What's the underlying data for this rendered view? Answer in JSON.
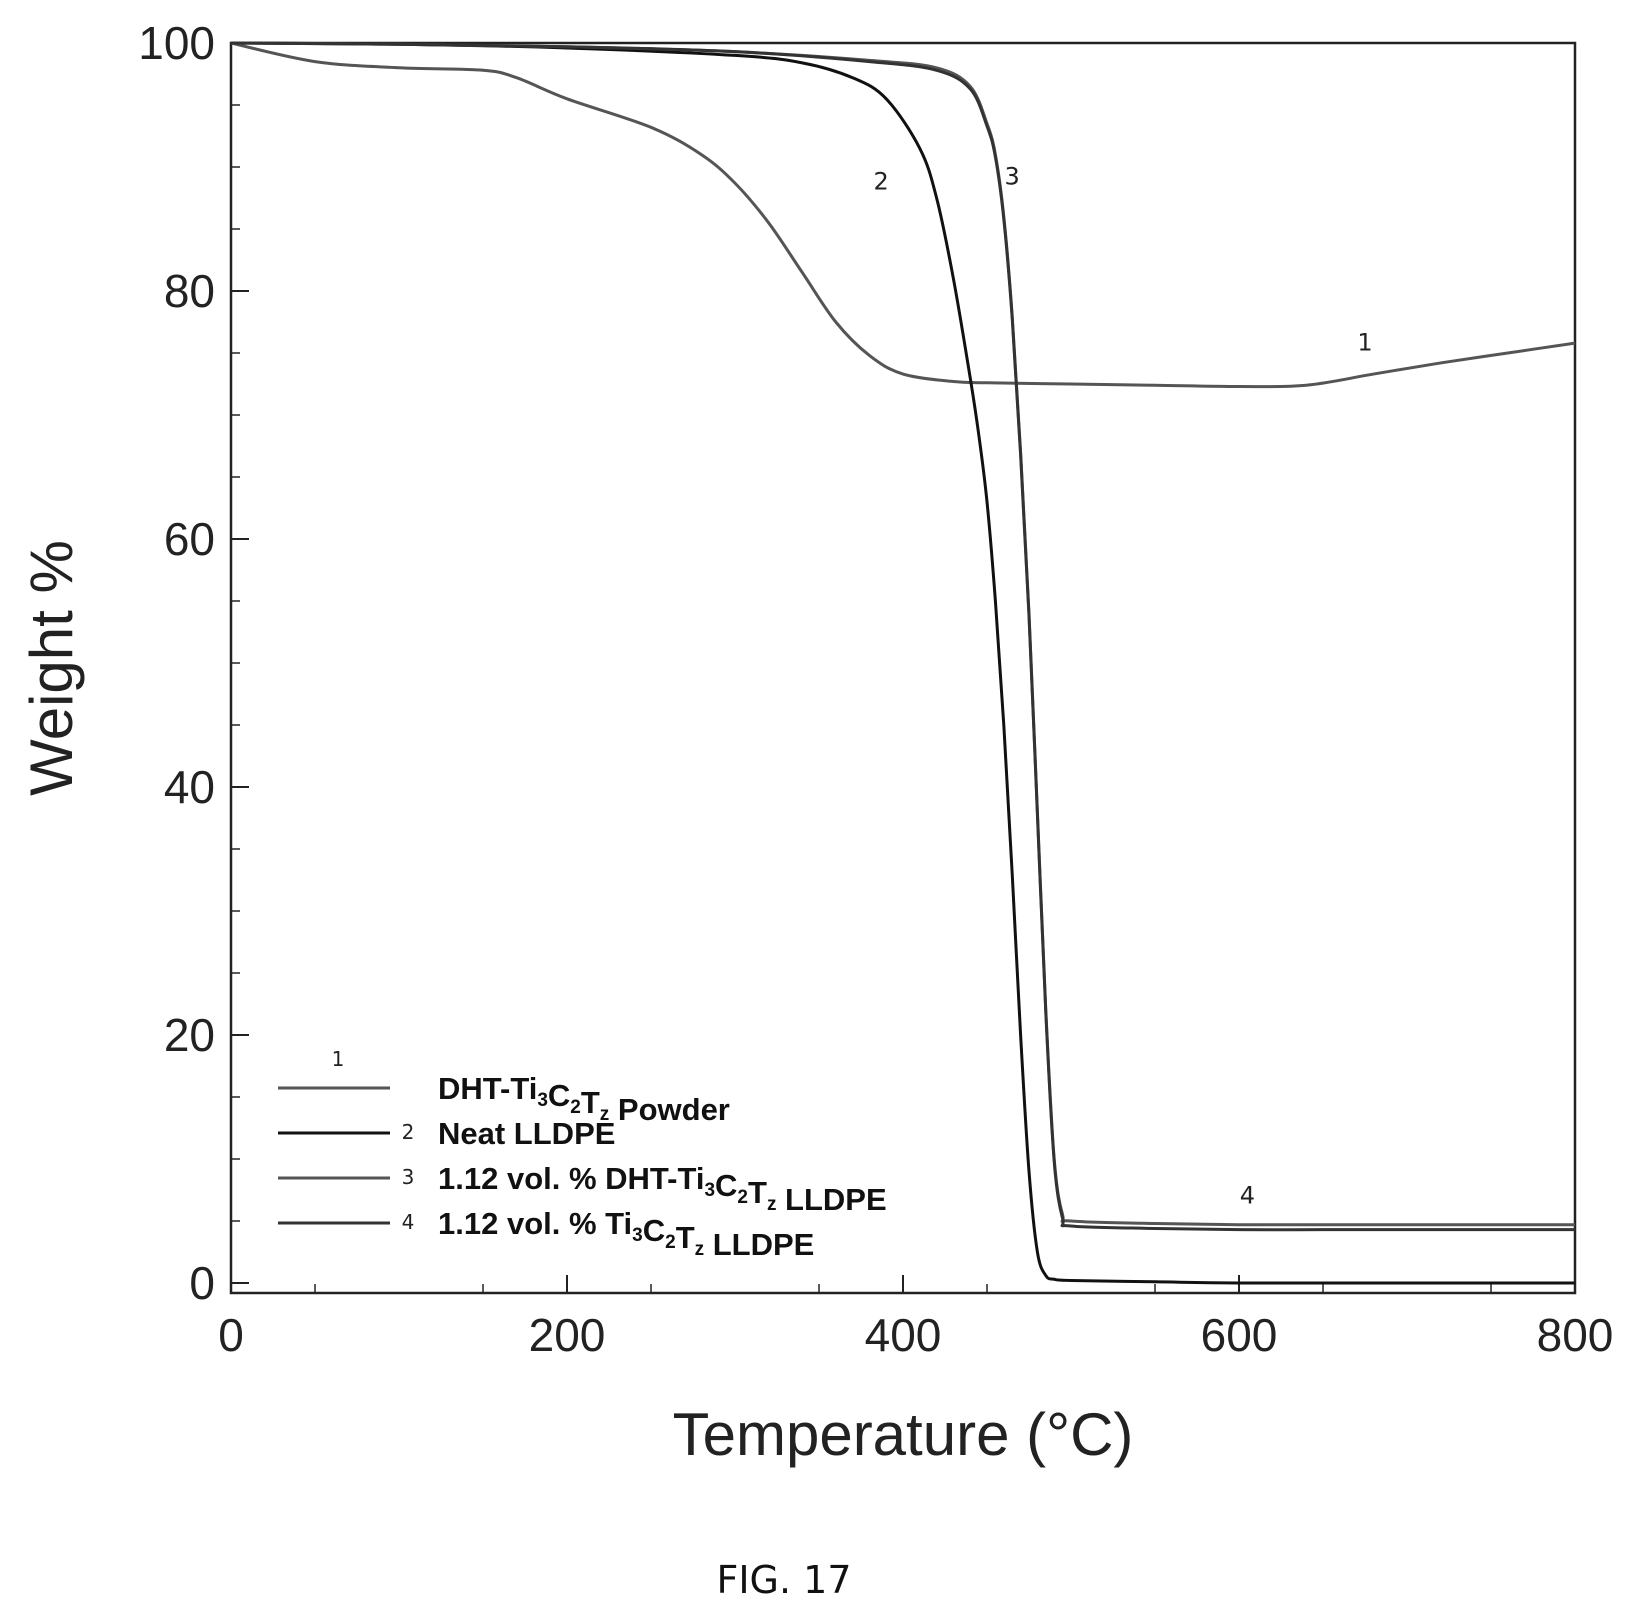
{
  "chart_data": {
    "type": "line",
    "xlabel": "Temperature (°C)",
    "ylabel": "Weight %",
    "xlim": [
      0,
      800
    ],
    "ylim": [
      0,
      100
    ],
    "xticks": [
      0,
      200,
      400,
      600,
      800
    ],
    "yticks": [
      0,
      20,
      40,
      60,
      80,
      100
    ],
    "grid": false,
    "legend_position": "bottom-left",
    "series": [
      {
        "name": "DHT-Ti3C2Tz Powder",
        "id": "1",
        "color": "#555555",
        "x": [
          0,
          50,
          100,
          150,
          170,
          200,
          250,
          280,
          300,
          320,
          340,
          360,
          380,
          400,
          430,
          450,
          500,
          550,
          600,
          640,
          680,
          720,
          760,
          800
        ],
        "y": [
          100,
          98.5,
          98.0,
          97.8,
          97.2,
          95.5,
          93.2,
          91.0,
          88.7,
          85.5,
          81.5,
          77.5,
          74.8,
          73.3,
          72.7,
          72.6,
          72.5,
          72.4,
          72.3,
          72.4,
          73.3,
          74.2,
          75.0,
          75.8
        ]
      },
      {
        "name": "Neat LLDPE",
        "id": "2",
        "color": "#111111",
        "x": [
          0,
          100,
          200,
          300,
          340,
          370,
          390,
          410,
          420,
          430,
          440,
          445,
          450,
          455,
          460,
          465,
          470,
          475,
          480,
          485,
          490,
          500,
          550,
          600,
          700,
          800
        ],
        "y": [
          100,
          99.9,
          99.6,
          99.0,
          98.4,
          97.2,
          95.5,
          91.5,
          87.5,
          81.0,
          73.0,
          68.5,
          63.0,
          55.0,
          45.0,
          33.0,
          20.0,
          9.0,
          2.5,
          0.6,
          0.3,
          0.2,
          0.1,
          0.0,
          0.0,
          0.0
        ]
      },
      {
        "name": "1.12 vol. % DHT-Ti3C2Tz LLDPE",
        "id": "3",
        "color": "#555555",
        "x": [
          0,
          100,
          200,
          300,
          380,
          420,
          440,
          450,
          455,
          460,
          465,
          470,
          475,
          480,
          485,
          490,
          495,
          500,
          550,
          600,
          650,
          700,
          750,
          800
        ],
        "y": [
          100,
          99.9,
          99.7,
          99.3,
          98.6,
          98.0,
          96.5,
          93.5,
          91.0,
          86.0,
          78.0,
          67.0,
          54.0,
          38.0,
          22.0,
          10.0,
          5.5,
          5.0,
          4.8,
          4.7,
          4.7,
          4.7,
          4.7,
          4.7
        ]
      },
      {
        "name": "1.12 vol. % Ti3C2Tz LLDPE",
        "id": "4",
        "color": "#333333",
        "x": [
          0,
          100,
          200,
          300,
          380,
          420,
          440,
          450,
          455,
          460,
          465,
          470,
          475,
          480,
          485,
          490,
          495,
          500,
          550,
          600,
          650,
          700,
          750,
          800
        ],
        "y": [
          100,
          99.9,
          99.7,
          99.3,
          98.5,
          97.8,
          96.3,
          93.3,
          90.8,
          85.8,
          77.8,
          66.8,
          53.8,
          37.8,
          21.8,
          9.8,
          5.2,
          4.6,
          4.4,
          4.3,
          4.3,
          4.3,
          4.3,
          4.3
        ]
      }
    ],
    "curve_labels": [
      {
        "text": "1",
        "x": 675,
        "y": 75.2
      },
      {
        "text": "2",
        "x": 387,
        "y": 88.2
      },
      {
        "text": "3",
        "x": 465,
        "y": 88.6
      },
      {
        "text": "4",
        "x": 605,
        "y": 6.4
      }
    ],
    "legend": [
      {
        "num": "1",
        "label_main": "DHT-Ti",
        "sub1": "3",
        "mid1": "C",
        "sub2": "2",
        "mid2": "T",
        "sub3": "z",
        "tail": " Powder",
        "color": "#555555"
      },
      {
        "num": "2",
        "label_main": "Neat LLDPE",
        "color": "#111111"
      },
      {
        "num": "3",
        "label_main": "1.12 vol. % DHT-Ti",
        "sub1": "3",
        "mid1": "C",
        "sub2": "2",
        "mid2": "T",
        "sub3": "z",
        "tail": " LLDPE",
        "color": "#555555"
      },
      {
        "num": "4",
        "label_main": "1.12 vol. % Ti",
        "sub1": "3",
        "mid1": "C",
        "sub2": "2",
        "mid2": "T",
        "sub3": "z",
        "tail": " LLDPE",
        "color": "#333333"
      }
    ]
  },
  "caption": "FIG. 17"
}
